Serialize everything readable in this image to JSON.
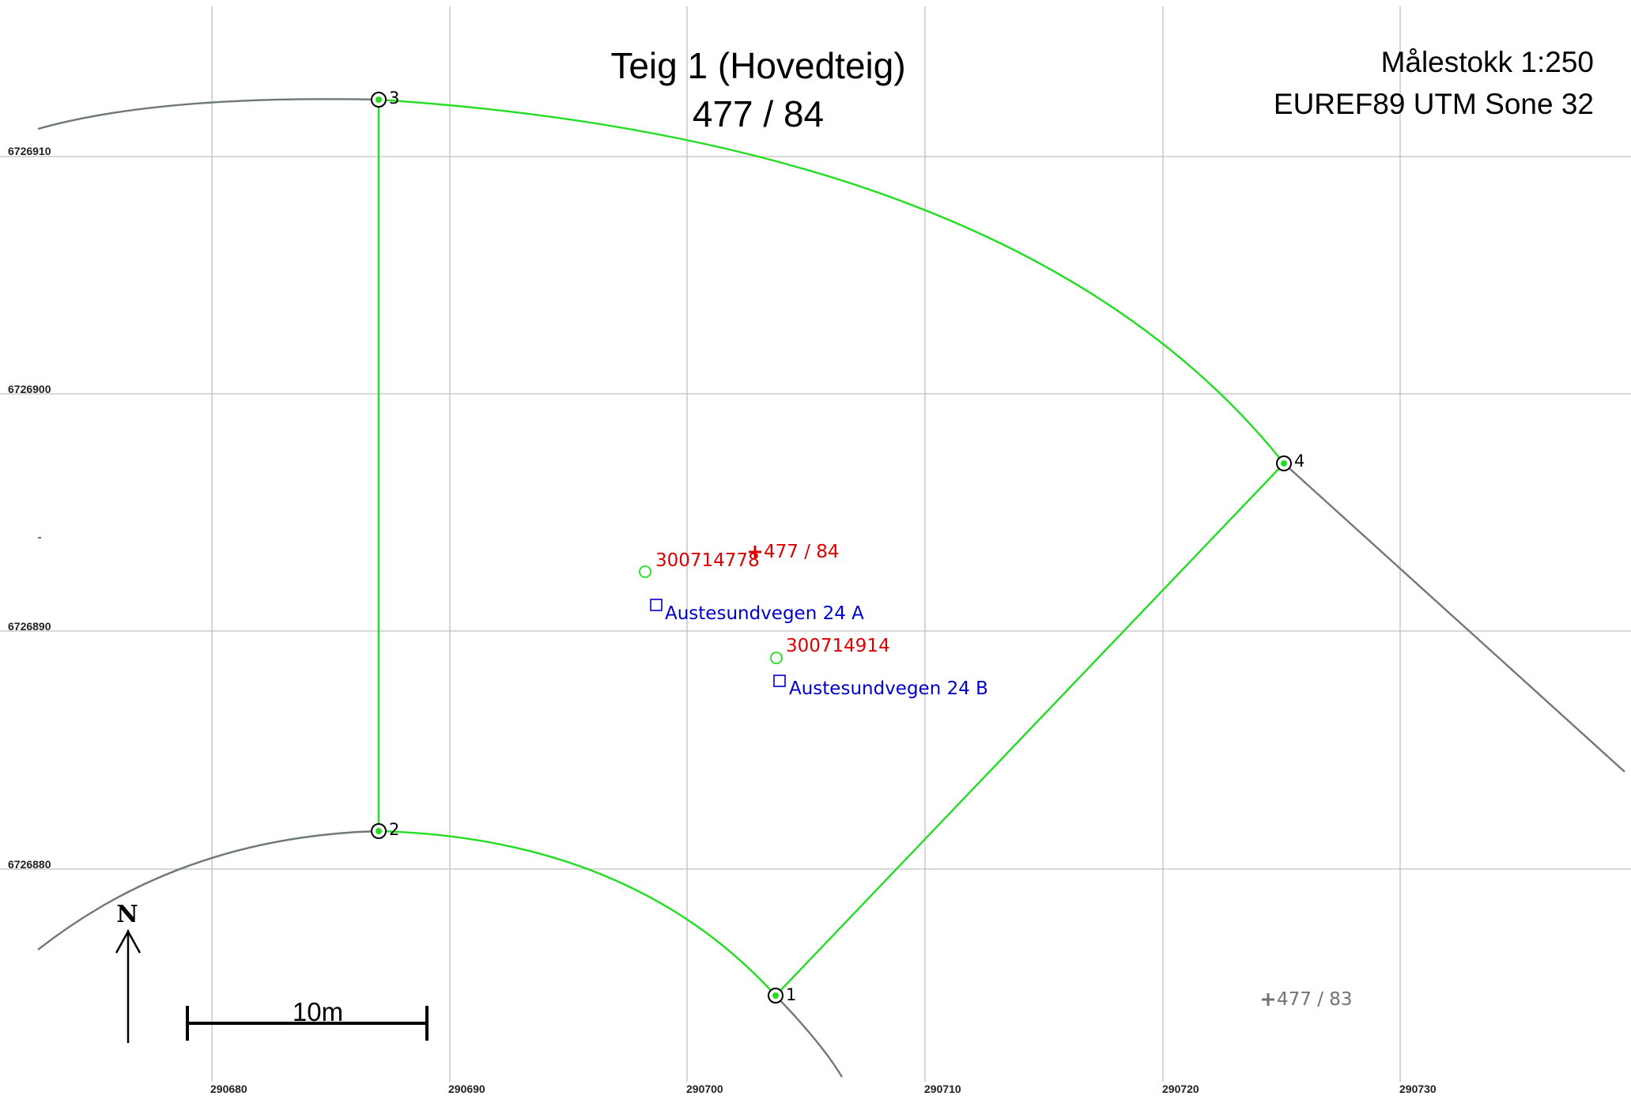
{
  "title": {
    "line1": "Teig 1 (Hovedteig)",
    "line2": "477 / 84"
  },
  "scale_info": {
    "scale": "Målestokk 1:250",
    "projection": "EUREF89 UTM Sone 32"
  },
  "grid": {
    "eastings": [
      "290680",
      "290690",
      "290700",
      "290710",
      "290720",
      "290730"
    ],
    "northings": [
      "6726910",
      "6726900",
      "6726890",
      "6726880"
    ]
  },
  "boundary_points": [
    {
      "label": "1"
    },
    {
      "label": "2"
    },
    {
      "label": "3"
    },
    {
      "label": "4"
    }
  ],
  "parcel_labels": {
    "main": "477 / 84",
    "neighbor": "477 / 83"
  },
  "buildings": [
    {
      "id": "300714778"
    },
    {
      "id": "300714914"
    }
  ],
  "addresses": [
    {
      "text": "Austesundvegen 24 A"
    },
    {
      "text": "Austesundvegen 24 B"
    }
  ],
  "north_arrow": {
    "label": "N"
  },
  "scale_bar": {
    "label": "10m"
  },
  "colors": {
    "boundary": "#22dd22",
    "outer_line": "#6f7a72",
    "building_label": "#dd0000",
    "address_label": "#0000cc",
    "neighbor_label": "#7a6f72",
    "grid": "#c0c0c0"
  }
}
